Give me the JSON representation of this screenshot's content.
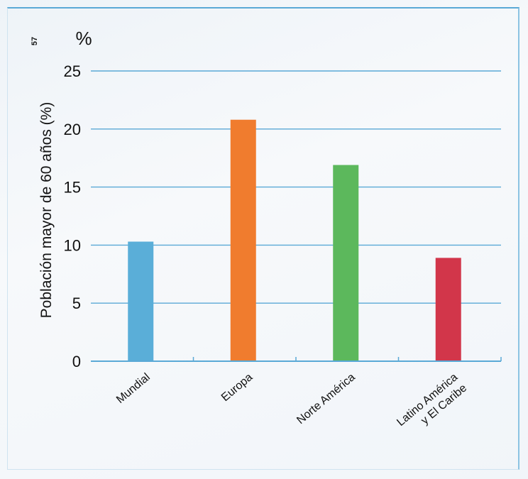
{
  "figure_number": "57",
  "chart_data": {
    "type": "bar",
    "categories": [
      "Mundial",
      "Europa",
      "Norte América",
      "Latino América\ny El Caribe"
    ],
    "values": [
      10.3,
      20.8,
      16.9,
      8.9
    ],
    "colors": [
      "#5aaed8",
      "#f07c2e",
      "#5cb85c",
      "#d2364a"
    ],
    "ylabel": "Población mayor de 60 años (%)",
    "unit_label": "%",
    "ylim": [
      0,
      25
    ],
    "yticks": [
      0,
      5,
      10,
      15,
      20,
      25
    ],
    "grid": true,
    "gridline_color": "#5aa9d6"
  }
}
